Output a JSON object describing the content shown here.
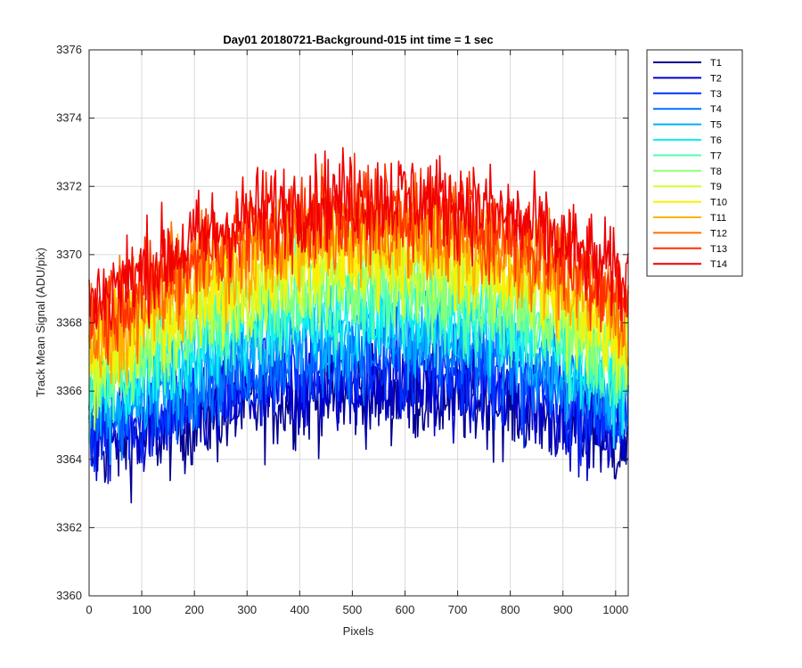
{
  "chart_data": {
    "type": "line",
    "title": "Day01 20180721-Background-015 int time = 1 sec",
    "xlabel": "Pixels",
    "ylabel": "Track Mean Signal (ADU/pix)",
    "xlim": [
      0,
      1024
    ],
    "ylim": [
      3360,
      3376
    ],
    "xticks": [
      "0",
      "100",
      "200",
      "300",
      "400",
      "500",
      "600",
      "700",
      "800",
      "900",
      "1000"
    ],
    "yticks": [
      "3360",
      "3362",
      "3364",
      "3366",
      "3368",
      "3370",
      "3372",
      "3374",
      "3376"
    ],
    "grid": true,
    "legend_position": "outside-top-right",
    "x_profile": [
      0,
      100,
      200,
      300,
      400,
      500,
      600,
      700,
      800,
      900,
      1000,
      1024
    ],
    "series": [
      {
        "name": "T1",
        "color": "#00008F",
        "profile": [
          3364.4,
          3364.6,
          3365.1,
          3365.5,
          3365.8,
          3365.9,
          3365.9,
          3365.8,
          3365.6,
          3365.1,
          3364.5,
          3364.3
        ]
      },
      {
        "name": "T2",
        "color": "#0000D0",
        "profile": [
          3364.6,
          3364.9,
          3365.4,
          3365.8,
          3366.1,
          3366.2,
          3366.2,
          3366.1,
          3365.9,
          3365.4,
          3364.8,
          3364.6
        ]
      },
      {
        "name": "T3",
        "color": "#0030FF",
        "profile": [
          3364.9,
          3365.3,
          3365.8,
          3366.3,
          3366.6,
          3366.7,
          3366.7,
          3366.6,
          3366.3,
          3365.8,
          3365.2,
          3365.0
        ]
      },
      {
        "name": "T4",
        "color": "#0070FF",
        "profile": [
          3365.2,
          3365.7,
          3366.3,
          3366.8,
          3367.1,
          3367.3,
          3367.3,
          3367.1,
          3366.8,
          3366.3,
          3365.6,
          3365.3
        ]
      },
      {
        "name": "T5",
        "color": "#00B0FF",
        "profile": [
          3365.5,
          3366.1,
          3366.8,
          3367.3,
          3367.6,
          3367.8,
          3367.8,
          3367.6,
          3367.3,
          3366.7,
          3366.0,
          3365.7
        ]
      },
      {
        "name": "T6",
        "color": "#10F0F0",
        "profile": [
          3365.8,
          3366.5,
          3367.2,
          3367.8,
          3368.1,
          3368.3,
          3368.3,
          3368.1,
          3367.8,
          3367.2,
          3366.4,
          3366.1
        ]
      },
      {
        "name": "T7",
        "color": "#50FFB0",
        "profile": [
          3366.1,
          3366.9,
          3367.7,
          3368.3,
          3368.6,
          3368.8,
          3368.8,
          3368.6,
          3368.3,
          3367.6,
          3366.8,
          3366.4
        ]
      },
      {
        "name": "T8",
        "color": "#90FF70",
        "profile": [
          3366.4,
          3367.2,
          3368.1,
          3368.7,
          3369.1,
          3369.3,
          3369.3,
          3369.1,
          3368.7,
          3368.0,
          3367.2,
          3366.8
        ]
      },
      {
        "name": "T9",
        "color": "#D0FF30",
        "profile": [
          3366.7,
          3367.6,
          3368.5,
          3369.1,
          3369.5,
          3369.7,
          3369.7,
          3369.5,
          3369.1,
          3368.4,
          3367.5,
          3367.1
        ]
      },
      {
        "name": "T10",
        "color": "#FFEF00",
        "profile": [
          3367.0,
          3367.9,
          3368.8,
          3369.5,
          3369.9,
          3370.1,
          3370.1,
          3369.9,
          3369.5,
          3368.7,
          3367.8,
          3367.4
        ]
      },
      {
        "name": "T11",
        "color": "#FFB000",
        "profile": [
          3367.4,
          3368.3,
          3369.2,
          3369.9,
          3370.3,
          3370.5,
          3370.5,
          3370.3,
          3369.9,
          3369.1,
          3368.2,
          3367.8
        ]
      },
      {
        "name": "T12",
        "color": "#FF7000",
        "profile": [
          3367.8,
          3368.7,
          3369.6,
          3370.3,
          3370.7,
          3370.9,
          3370.9,
          3370.7,
          3370.3,
          3369.5,
          3368.6,
          3368.2
        ]
      },
      {
        "name": "T13",
        "color": "#FF3000",
        "profile": [
          3368.2,
          3369.1,
          3370.0,
          3370.7,
          3371.1,
          3371.3,
          3371.3,
          3371.1,
          3370.7,
          3369.9,
          3369.0,
          3368.6
        ]
      },
      {
        "name": "T14",
        "color": "#F00000",
        "profile": [
          3368.6,
          3369.5,
          3370.4,
          3371.1,
          3371.5,
          3371.7,
          3371.7,
          3371.5,
          3371.1,
          3370.3,
          3369.4,
          3369.0
        ]
      }
    ]
  }
}
